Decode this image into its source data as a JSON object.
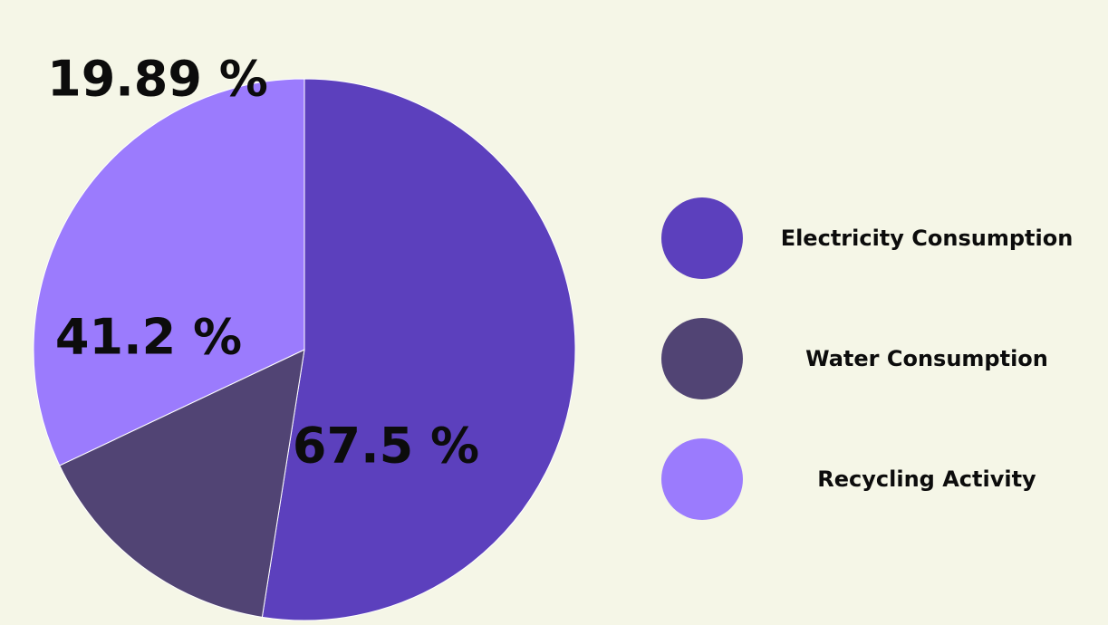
{
  "chart_data": {
    "type": "pie",
    "slices": [
      {
        "name": "Electricity Consumption",
        "value": 67.5,
        "label": "67.5 %",
        "color": "#5c40bd"
      },
      {
        "name": "Water Consumption",
        "value": 19.89,
        "label": "19.89 %",
        "color": "#514474"
      },
      {
        "name": "Recycling Activity",
        "value": 41.2,
        "label": "41.2 %",
        "color": "#9b7bfd"
      }
    ],
    "legend_position": "right",
    "background": "#f5f6e7"
  }
}
